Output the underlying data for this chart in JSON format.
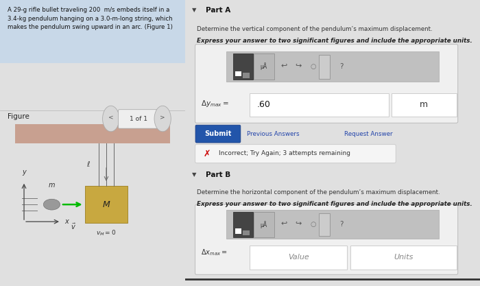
{
  "bg_left": "#e0e0e0",
  "bg_right": "#e8e8e8",
  "problem_text_bg": "#c8d8e8",
  "problem_text": "A 29-g rifle bullet traveling 200  m/s embeds itself in a\n3.4-kg pendulum hanging on a 3.0-m-long string, which\nmakes the pendulum swing upward in an arc. (Figure 1)",
  "figure_label": "Figure",
  "nav_text": "1 of 1",
  "ceiling_color": "#c8a090",
  "string_color": "#666666",
  "pendulum_color": "#c8a840",
  "pendulum_edge": "#9a7e20",
  "bullet_color": "#888888",
  "arrow_color": "#00bb00",
  "axis_color": "#444444",
  "part_a_title": "Part A",
  "part_a_desc1": "Determine the vertical component of the pendulum’s maximum displacement.",
  "part_a_desc2": "Express your answer to two significant figures and include the appropriate units.",
  "part_a_answer_value": ".60",
  "part_a_answer_unit": "m",
  "submit_btn_color": "#2255aa",
  "submit_btn_text": "Submit",
  "prev_answers_text": "Previous Answers",
  "request_answer_text": "Request Answer",
  "incorrect_text": "Incorrect; Try Again; 3 attempts remaining",
  "part_b_title": "Part B",
  "part_b_desc1": "Determine the horizontal component of the pendulum’s maximum displacement.",
  "part_b_desc2": "Express your answer to two significant figures and include the appropriate units.",
  "part_b_value_placeholder": "Value",
  "part_b_units_placeholder": "Units",
  "ell_label": "ℓ",
  "m_label": "m",
  "M_label": "M",
  "x_label": "x",
  "y_label": "y"
}
